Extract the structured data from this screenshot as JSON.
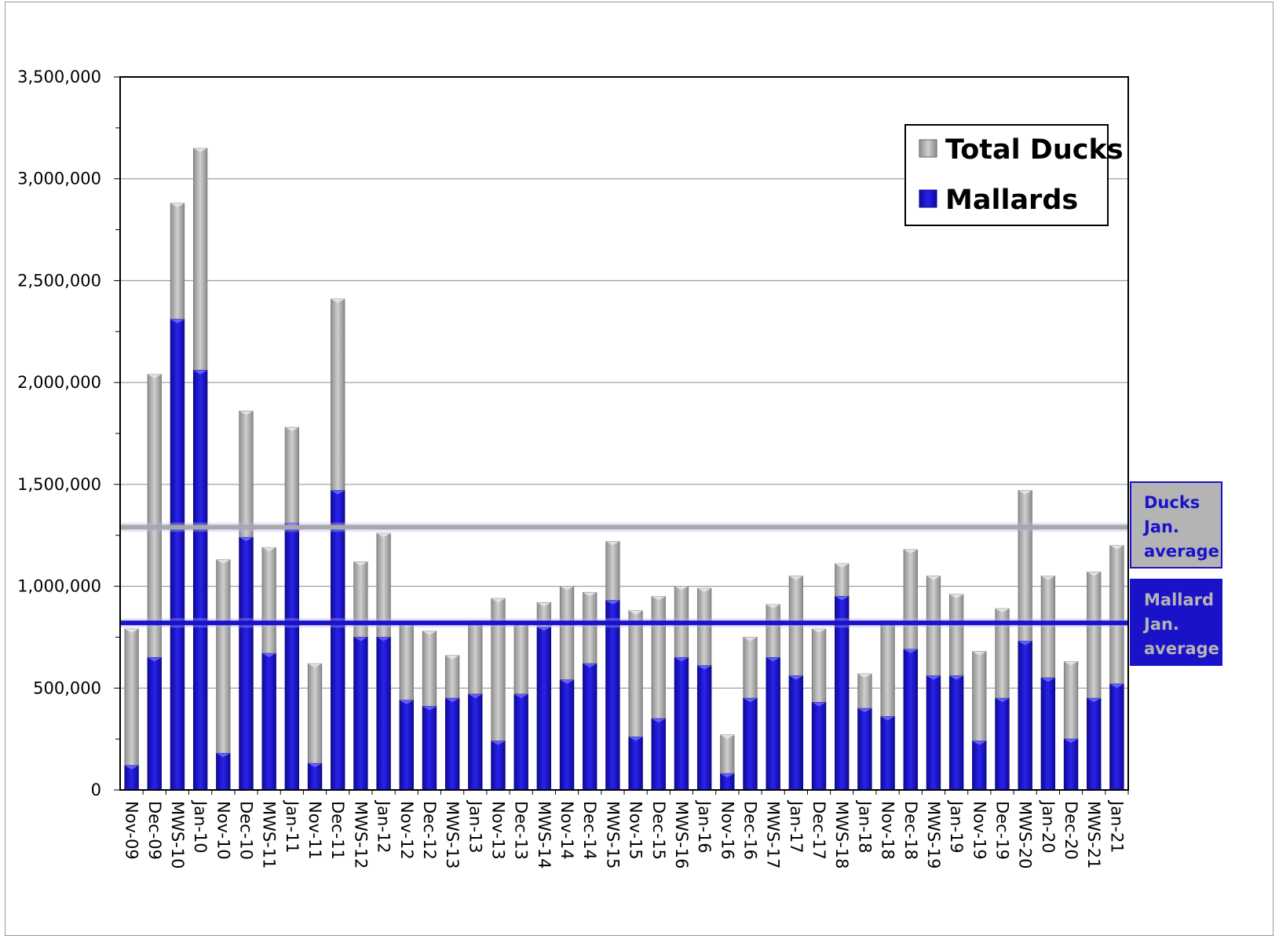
{
  "chart_data": {
    "type": "bar",
    "categories": [
      "Nov-09",
      "Dec-09",
      "MWS-10",
      "Jan-10",
      "Nov-10",
      "Dec-10",
      "MWS-11",
      "Jan-11",
      "Nov-11",
      "Dec-11",
      "MWS-12",
      "Jan-12",
      "Nov-12",
      "Dec-12",
      "MWS-13",
      "Jan-13",
      "Nov-13",
      "Dec-13",
      "MWS-14",
      "Nov-14",
      "Dec-14",
      "MWS-15",
      "Nov-15",
      "Dec-15",
      "MWS-16",
      "Jan-16",
      "Nov-16",
      "Dec-16",
      "MWS-17",
      "Jan-17",
      "Dec-17",
      "MWS-18",
      "Jan-18",
      "Nov-18",
      "Dec-18",
      "MWS-19",
      "Jan-19",
      "Nov-19",
      "Dec-19",
      "MWS-20",
      "Jan-20",
      "Dec-20",
      "MWS-21",
      "Jan-21"
    ],
    "series": [
      {
        "name": "Total Ducks",
        "color": "#a8a8a8",
        "values": [
          790000,
          2040000,
          2880000,
          3150000,
          1130000,
          1860000,
          1190000,
          1780000,
          620000,
          2410000,
          1120000,
          1260000,
          820000,
          780000,
          660000,
          830000,
          940000,
          820000,
          920000,
          1000000,
          970000,
          1220000,
          880000,
          950000,
          1000000,
          990000,
          270000,
          750000,
          910000,
          1050000,
          790000,
          1110000,
          570000,
          830000,
          1180000,
          1050000,
          960000,
          680000,
          890000,
          1470000,
          1050000,
          630000,
          1070000,
          1200000
        ]
      },
      {
        "name": "Mallards",
        "color": "#1a12c8",
        "values": [
          120000,
          650000,
          2310000,
          2060000,
          180000,
          1240000,
          670000,
          1310000,
          130000,
          1470000,
          750000,
          750000,
          440000,
          410000,
          450000,
          470000,
          240000,
          470000,
          800000,
          540000,
          620000,
          930000,
          260000,
          350000,
          650000,
          610000,
          80000,
          450000,
          650000,
          560000,
          430000,
          950000,
          400000,
          360000,
          690000,
          560000,
          560000,
          240000,
          450000,
          730000,
          550000,
          250000,
          450000,
          520000
        ]
      }
    ],
    "yticks": [
      "3,500,000",
      "3,000,000",
      "2,500,000",
      "2,000,000",
      "1,500,000",
      "1,000,000",
      "500,000",
      "0"
    ],
    "ylim": [
      0,
      3500000
    ],
    "reference_lines": [
      {
        "label": [
          "Ducks",
          "Jan.",
          "average"
        ],
        "value": 1290000,
        "line_color": "#a8a8a8",
        "box_fill": "#b4b4b4",
        "text_color": "#1a12c8"
      },
      {
        "label": [
          "Mallard",
          "Jan.",
          "average"
        ],
        "value": 820000,
        "line_color": "#1a12c8",
        "box_fill": "#1a12c8",
        "text_color": "#b4b4b4"
      }
    ],
    "legend_position": "top-right",
    "grid": true
  }
}
